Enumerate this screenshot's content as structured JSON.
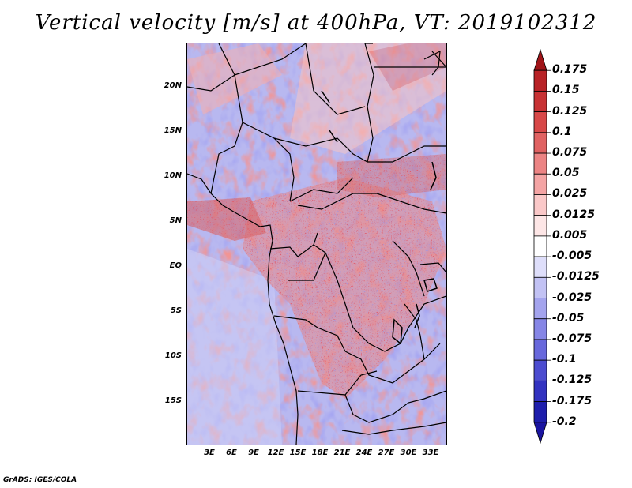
{
  "title": "Vertical velocity [m/s] at 400hPa, VT: 2019102312",
  "credit": "GrADS: IGES/COLA",
  "map": {
    "variable": "Vertical velocity",
    "units": "m/s",
    "level": "400hPa",
    "valid_time": "2019102312",
    "lat_labels": [
      "20N",
      "15N",
      "10N",
      "5N",
      "EQ",
      "5S",
      "10S",
      "15S"
    ],
    "lon_labels": [
      "3E",
      "6E",
      "9E",
      "12E",
      "15E",
      "18E",
      "21E",
      "24E",
      "27E",
      "30E",
      "33E"
    ]
  },
  "colorbar": {
    "levels": [
      "0.175",
      "0.15",
      "0.125",
      "0.1",
      "0.075",
      "0.05",
      "0.025",
      "0.0125",
      "0.005",
      "-0.005",
      "-0.0125",
      "-0.025",
      "-0.05",
      "-0.075",
      "-0.1",
      "-0.125",
      "-0.175",
      "-0.2"
    ],
    "colors": [
      "#a01418",
      "#b82226",
      "#c83234",
      "#d84848",
      "#e06262",
      "#ec8484",
      "#f4a4a4",
      "#fac8c8",
      "#fde6e6",
      "#ffffff",
      "#dedefa",
      "#c2c2f4",
      "#a4a4ee",
      "#8686e6",
      "#6868dc",
      "#4c4cd0",
      "#3232c0",
      "#1e1eac",
      "#1a14a0"
    ]
  }
}
